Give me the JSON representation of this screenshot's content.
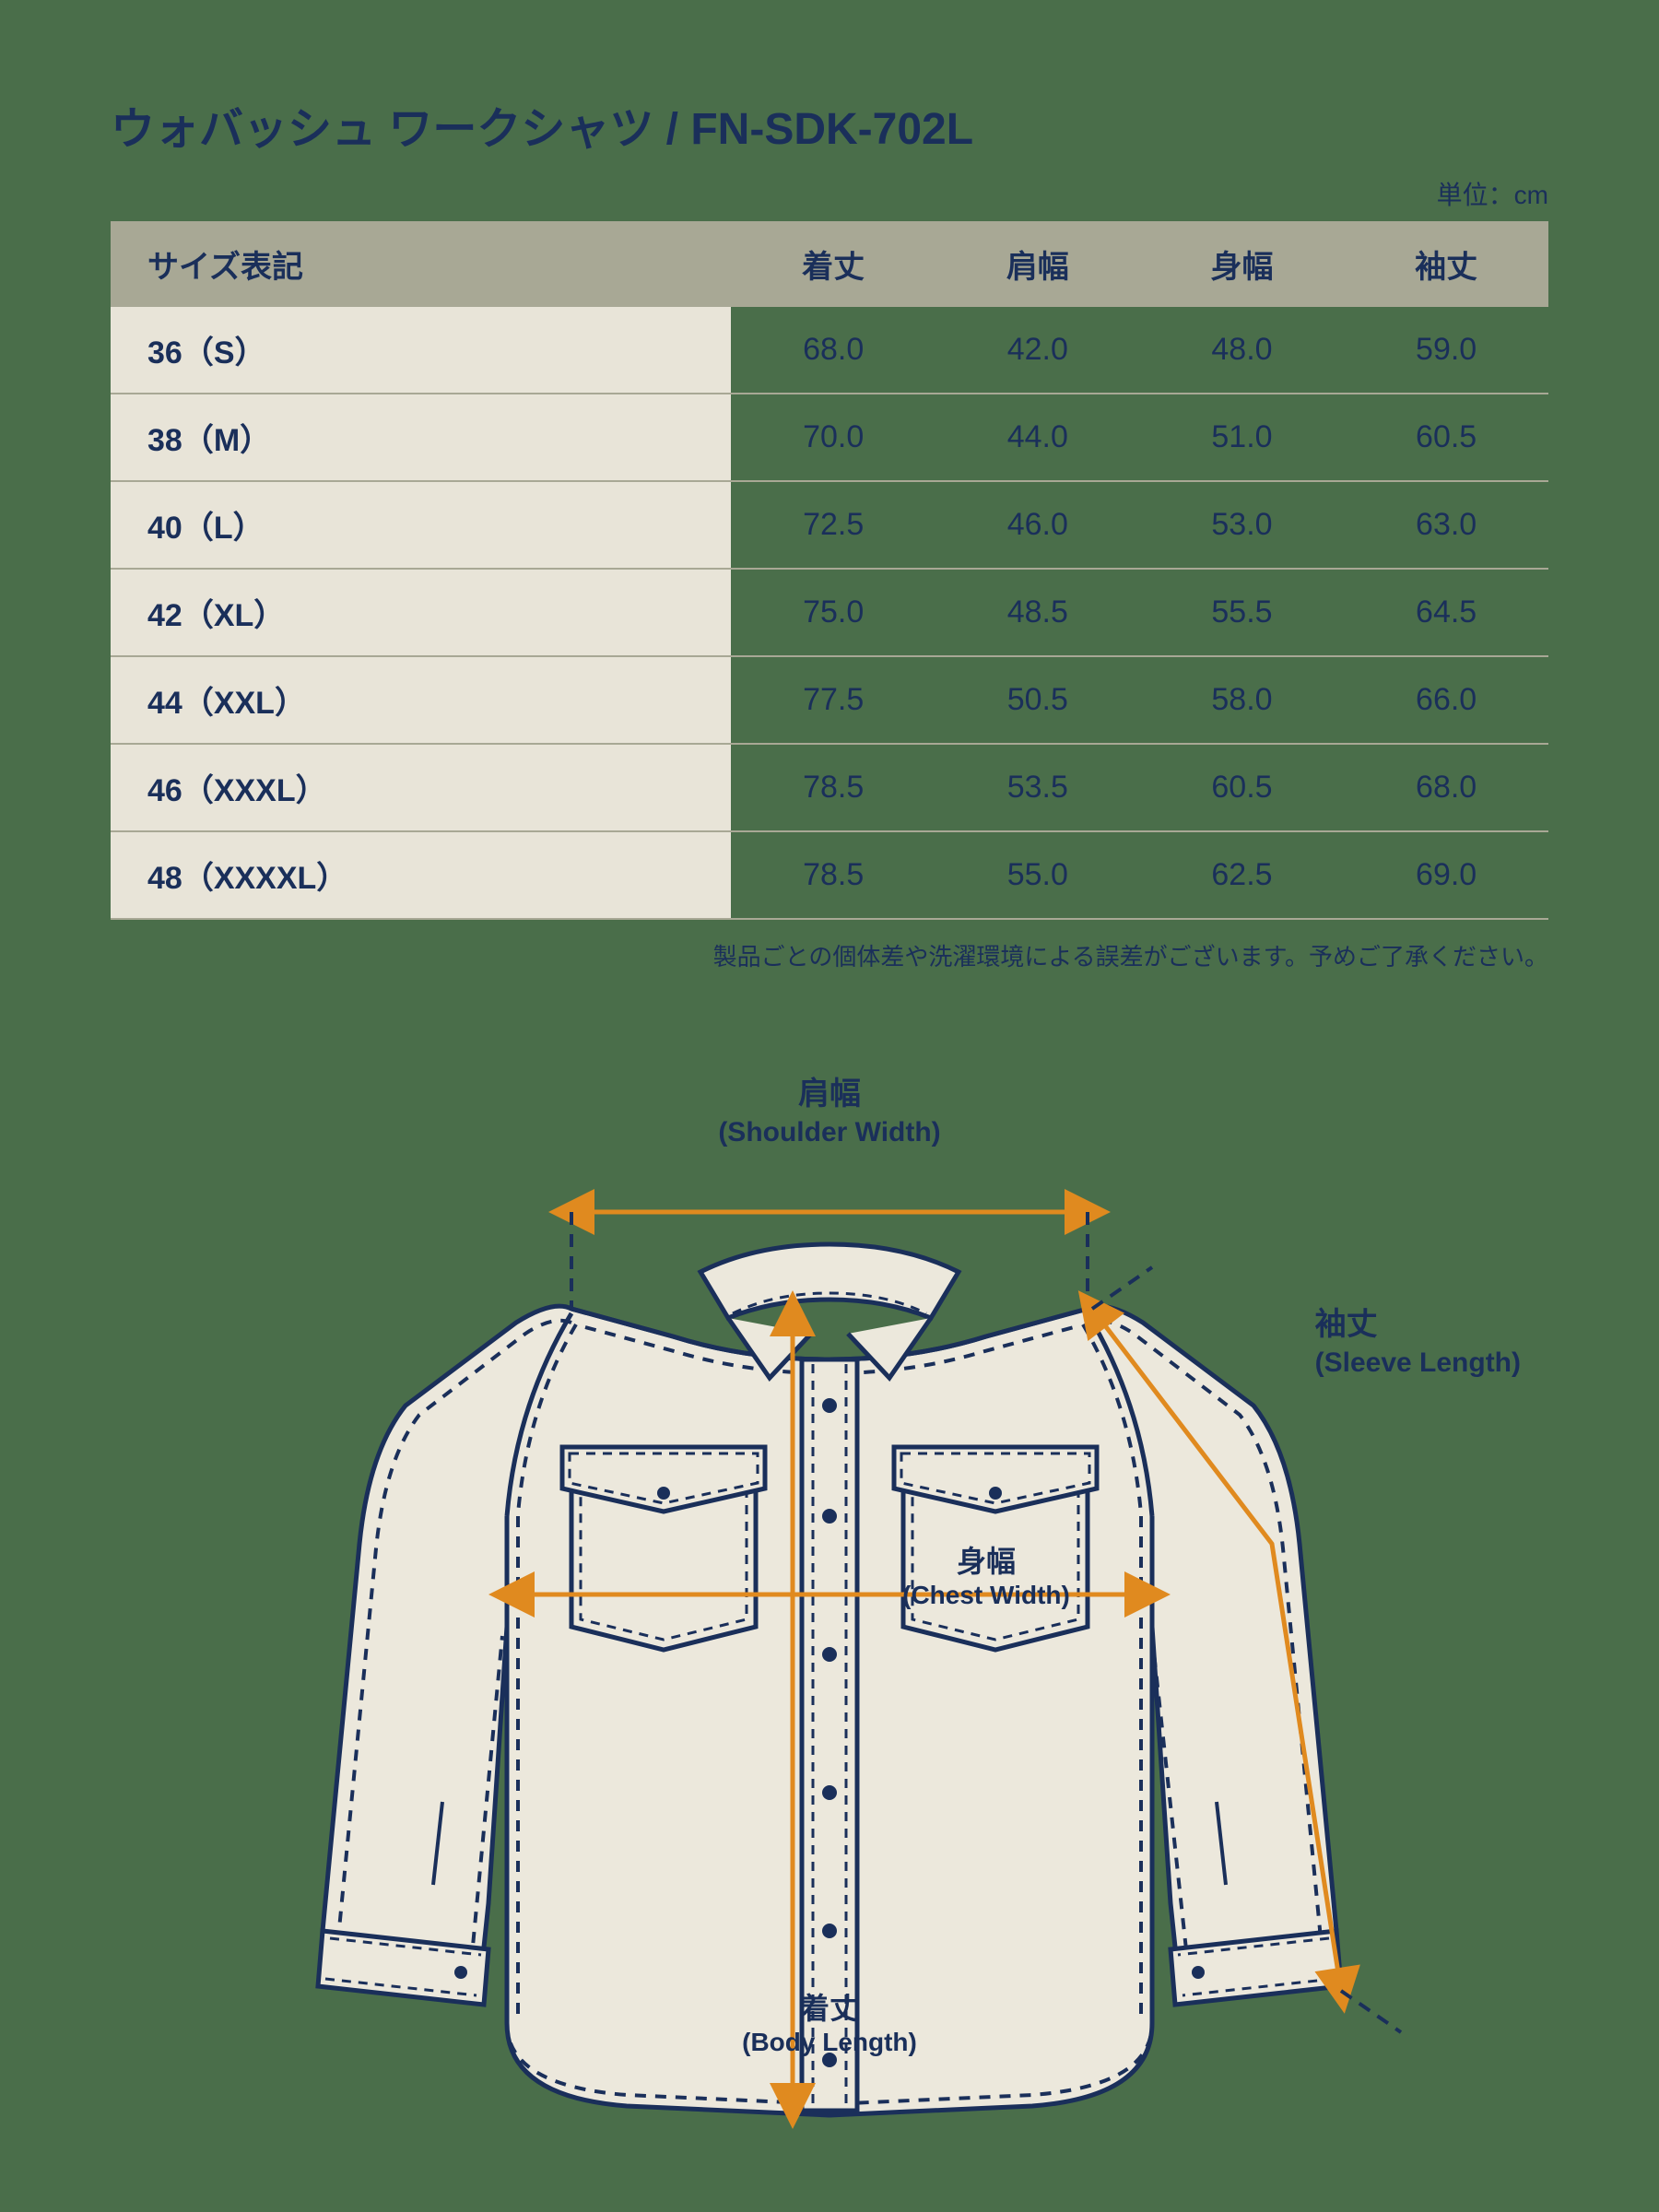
{
  "title": "ウォバッシュ ワークシャツ / FN-SDK-702L",
  "unit_label": "単位：cm",
  "colors": {
    "background": "#4a6e4a",
    "text_navy": "#1a2f5a",
    "header_bg": "#a8a895",
    "first_col_bg": "#e8e4d8",
    "row_border": "#a8a895",
    "shirt_fill": "#ece8dc",
    "shirt_stroke": "#1a2f5a",
    "arrow": "#e08a1f"
  },
  "typography": {
    "title_fontsize": 48,
    "table_fontsize": 34,
    "unit_fontsize": 28,
    "note_fontsize": 26,
    "label_jp_fontsize": 34,
    "label_en_fontsize": 30
  },
  "table": {
    "columns": [
      "サイズ表記",
      "着丈",
      "肩幅",
      "身幅",
      "袖丈"
    ],
    "rows": [
      [
        "36（S）",
        "68.0",
        "42.0",
        "48.0",
        "59.0"
      ],
      [
        "38（M）",
        "70.0",
        "44.0",
        "51.0",
        "60.5"
      ],
      [
        "40（L）",
        "72.5",
        "46.0",
        "53.0",
        "63.0"
      ],
      [
        "42（XL）",
        "75.0",
        "48.5",
        "55.5",
        "64.5"
      ],
      [
        "44（XXL）",
        "77.5",
        "50.5",
        "58.0",
        "66.0"
      ],
      [
        "46（XXXL）",
        "78.5",
        "53.5",
        "60.5",
        "68.0"
      ],
      [
        "48（XXXXL）",
        "78.5",
        "55.0",
        "62.5",
        "69.0"
      ]
    ]
  },
  "note": "製品ごとの個体差や洗濯環境による誤差がございます。予めご了承ください。",
  "diagram": {
    "type": "infographic",
    "labels": {
      "shoulder": {
        "jp": "肩幅",
        "en": "(Shoulder Width)"
      },
      "sleeve": {
        "jp": "袖丈",
        "en": "(Sleeve Length)"
      },
      "chest": {
        "jp": "身幅",
        "en": "(Chest Width)"
      },
      "body": {
        "jp": "着丈",
        "en": "(Body Length)"
      }
    },
    "shirt_stroke_width": 5,
    "dash_pattern": "12 10",
    "arrow_width": 5
  }
}
